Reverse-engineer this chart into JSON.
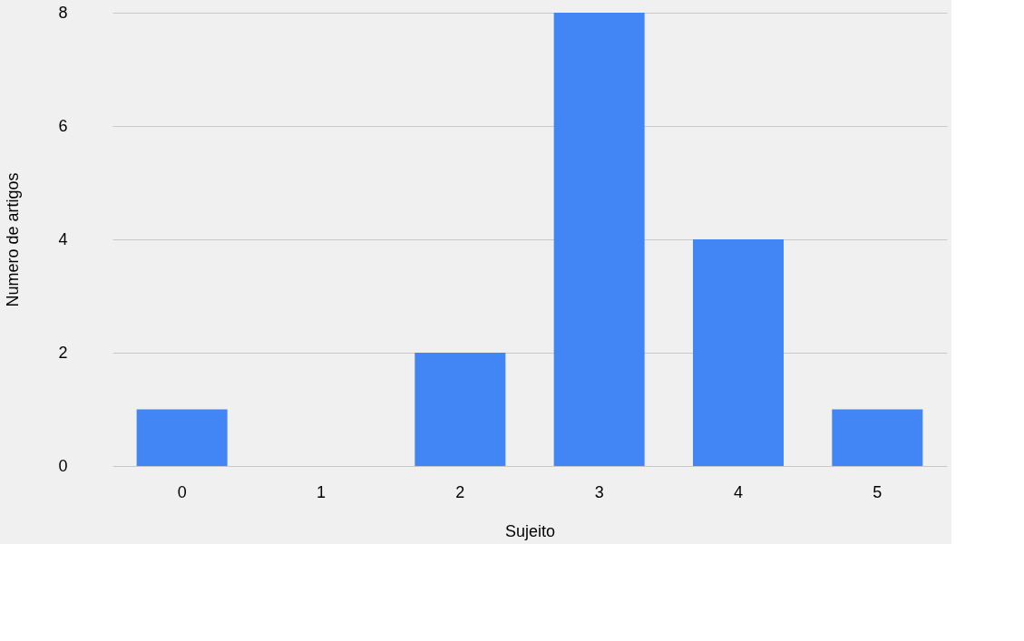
{
  "chart_data": {
    "type": "bar",
    "xlabel": "Sujeito",
    "ylabel": "Numero de artigos",
    "categories": [
      "0",
      "1",
      "2",
      "3",
      "4",
      "5"
    ],
    "values": [
      1,
      0,
      2,
      8,
      4,
      1
    ],
    "color": "#4285f4",
    "ylim": [
      0,
      8
    ],
    "yticks": [
      0,
      2,
      4,
      6,
      8
    ],
    "grid": "y"
  }
}
